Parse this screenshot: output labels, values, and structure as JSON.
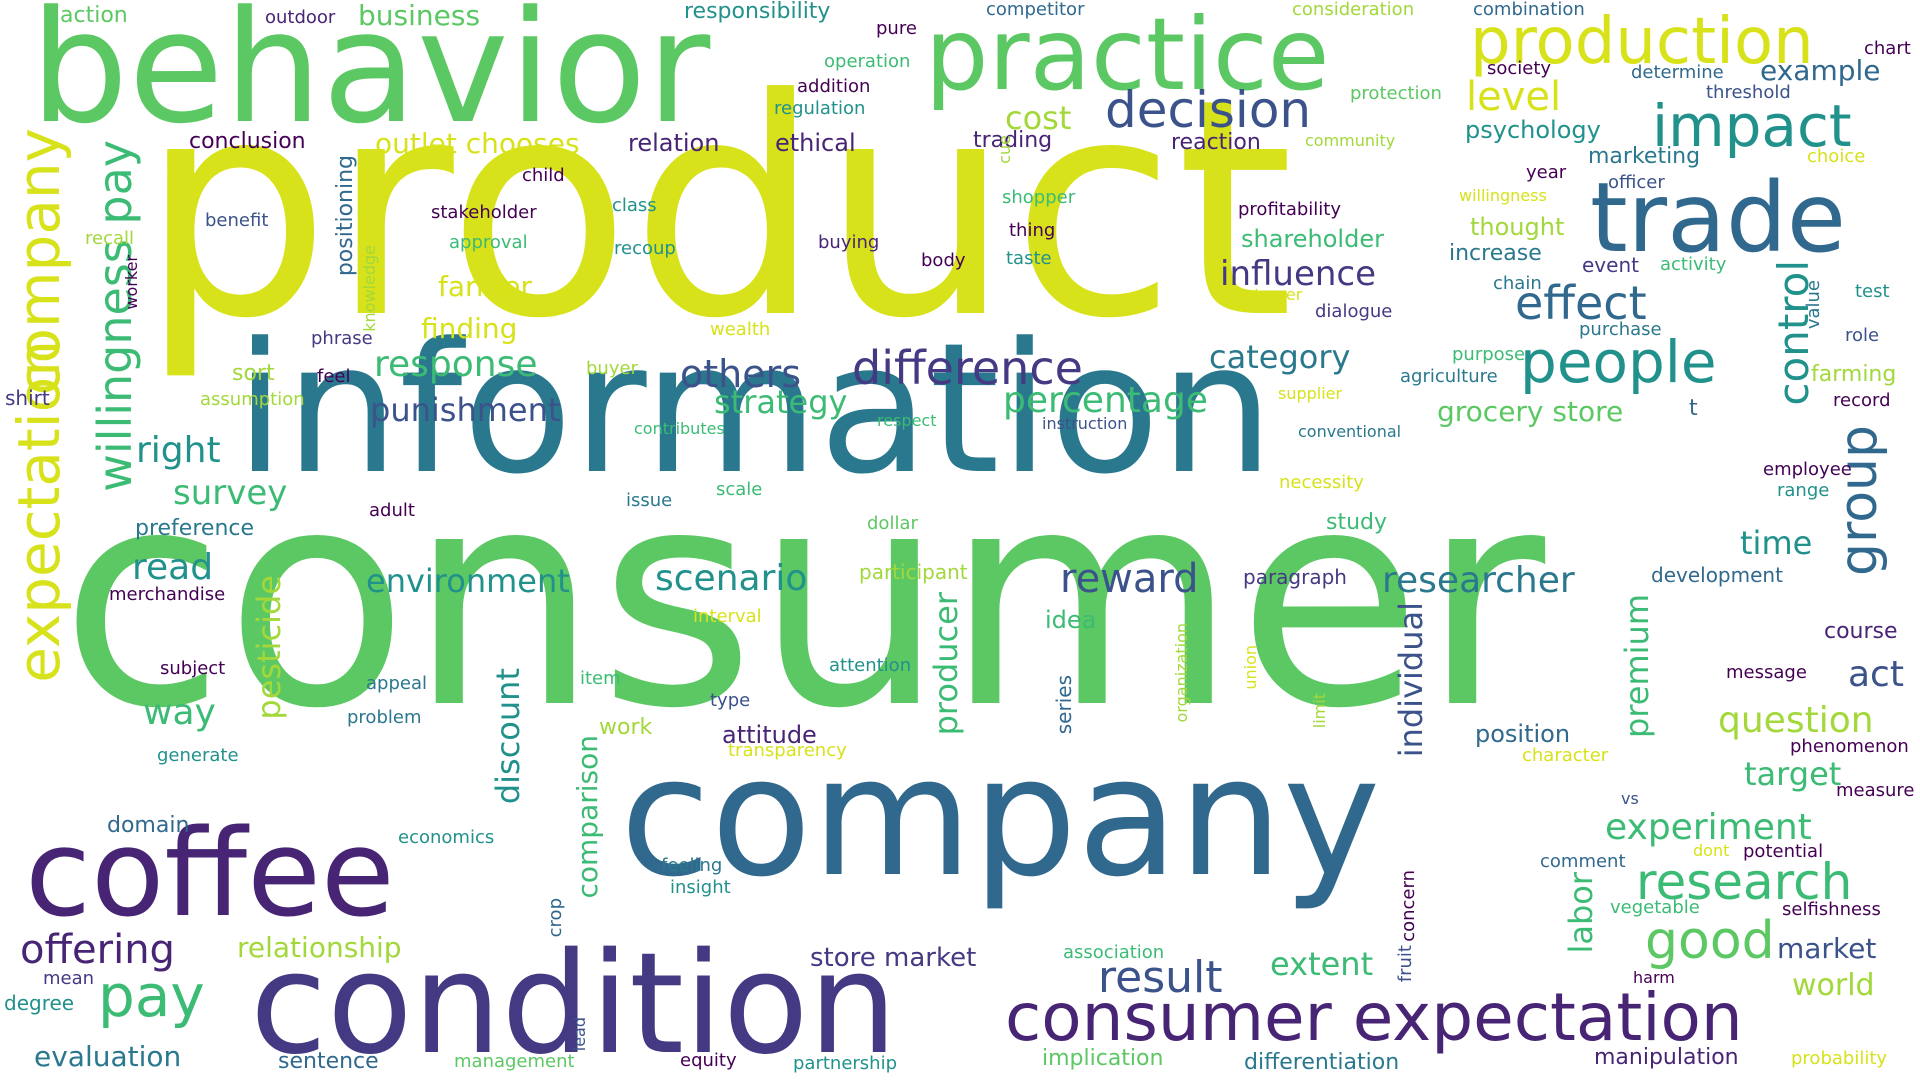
{
  "palette": {
    "background": "#ffffff",
    "yellow": "#d7e21a",
    "lime": "#a2d83a",
    "green": "#5cc863",
    "emerald": "#3cbb75",
    "teal": "#21918c",
    "teal_blue": "#2a788e",
    "blue": "#31688e",
    "slate": "#3b528b",
    "indigo": "#443983",
    "purple": "#482475",
    "dark_purple": "#440154"
  },
  "words": [
    "product",
    "consumer",
    "information",
    "company",
    "behavior",
    "coffee",
    "condition",
    "practice",
    "trade",
    "production",
    "consumer expectation",
    "impact",
    "people",
    "decision",
    "effect",
    "research",
    "pay",
    "offering",
    "result",
    "good",
    "willingness pay",
    "expectation",
    "company",
    "group",
    "control",
    "difference",
    "response",
    "influence",
    "category",
    "reward",
    "scenario",
    "researcher",
    "percentage",
    "others",
    "punishment",
    "strategy",
    "environment",
    "survey",
    "read",
    "right",
    "way",
    "pesticide",
    "discount",
    "producer",
    "individual",
    "premium",
    "labor",
    "comparison",
    "question",
    "experiment",
    "target",
    "act",
    "time",
    "extent",
    "evaluation",
    "relationship",
    "store market",
    "level",
    "cost",
    "outlet chooses",
    "business",
    "farmer",
    "finding",
    "grocery store",
    "market",
    "world",
    "shareholder",
    "increase",
    "thought",
    "attitude",
    "position",
    "idea",
    "work",
    "marketing",
    "example",
    "psychology",
    "relation",
    "ethical",
    "conclusion",
    "reaction",
    "trading",
    "preference",
    "participant",
    "paragraph",
    "development",
    "study",
    "differentiation",
    "implication",
    "manipulation",
    "sentence",
    "course",
    "dialogue",
    "event",
    "activity",
    "value",
    "test",
    "purchase",
    "role",
    "farming",
    "record",
    "supplier",
    "agriculture",
    "purpose",
    "instruction",
    "respect",
    "contributes",
    "conventional",
    "necessity",
    "scale",
    "dollar",
    "issue",
    "adult",
    "employee",
    "range",
    "merchandise",
    "subject",
    "appeal",
    "item",
    "attention",
    "type",
    "problem",
    "generate",
    "domain",
    "economics",
    "feeling",
    "insight",
    "crop",
    "concern",
    "fruit",
    "vegetable",
    "selfishness",
    "harm",
    "comment",
    "potential",
    "dont",
    "vs",
    "measure",
    "phenomenon",
    "character",
    "transparency",
    "interval",
    "organization",
    "union",
    "limit",
    "series",
    "message",
    "mean",
    "degree",
    "management",
    "lead",
    "equity",
    "partnership",
    "probability",
    "association",
    "stakeholder",
    "approval",
    "recoup",
    "class",
    "child",
    "benefit",
    "recall",
    "worker",
    "knowledge",
    "positioning",
    "phrase",
    "sort",
    "feel",
    "buyer",
    "assumption",
    "shirt",
    "wealth",
    "buying",
    "body",
    "thing",
    "taste",
    "shopper",
    "cue",
    "profitability",
    "willingness",
    "customer",
    "year",
    "officer",
    "chain",
    "choice",
    "threshold",
    "society",
    "determine",
    "chart",
    "combination",
    "consideration",
    "competitor",
    "pure",
    "addition",
    "regulation",
    "operation",
    "protection",
    "community",
    "responsibility",
    "outdoor",
    "action",
    "t"
  ]
}
